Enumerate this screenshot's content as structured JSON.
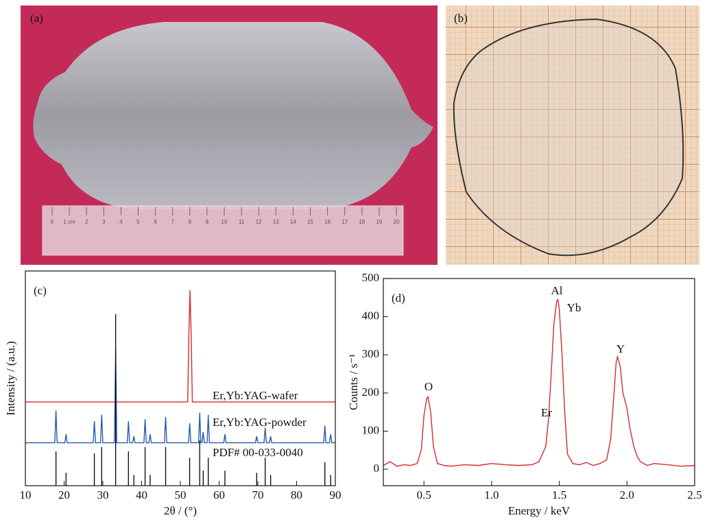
{
  "panels": {
    "a": {
      "label": "(a)",
      "ruler_labels": [
        "0",
        "1 cm",
        "2",
        "3",
        "4",
        "5",
        "6",
        "7",
        "8",
        "9",
        "10",
        "11",
        "12",
        "13",
        "14",
        "15",
        "16",
        "17",
        "18",
        "19",
        "20"
      ]
    },
    "b": {
      "label": "(b)"
    }
  },
  "chart_data": [
    {
      "type": "line",
      "label": "(c)",
      "x_label": "2θ / (°)",
      "y_label": "Intensity / (a.u.)",
      "xlim": [
        10,
        90
      ],
      "xticks": [
        10,
        20,
        30,
        40,
        50,
        60,
        70,
        80,
        90
      ],
      "ylim": [
        0,
        100
      ],
      "series": [
        {
          "name": "Er,Yb:YAG-wafer",
          "color": "#d42a2a",
          "x": [
            10,
            51.9,
            52.2,
            52.5,
            52.8,
            53.1,
            90
          ],
          "values": [
            39,
            39,
            70,
            91,
            70,
            39,
            39
          ]
        },
        {
          "name": "Er,Yb:YAG-powder",
          "color": "#2b5aa8",
          "x": [
            10,
            17.6,
            17.9,
            18.2,
            20.2,
            20.5,
            20.8,
            27.5,
            27.8,
            28.1,
            29.4,
            29.7,
            30.0,
            33.0,
            33.3,
            33.6,
            36.3,
            36.6,
            36.9,
            37.7,
            38.0,
            38.3,
            40.6,
            40.9,
            41.2,
            41.9,
            42.2,
            42.5,
            45.9,
            46.2,
            46.5,
            52.1,
            52.4,
            52.7,
            54.7,
            55.0,
            55.3,
            55.6,
            55.9,
            56.2,
            56.9,
            57.2,
            57.5,
            61.2,
            61.5,
            61.8,
            69.4,
            69.7,
            70.0,
            71.6,
            71.9,
            72.2,
            73.0,
            73.3,
            73.6,
            87.0,
            87.3,
            87.6,
            88.5,
            88.8,
            89.1,
            90
          ],
          "values": [
            20,
            20,
            35,
            20,
            20,
            24,
            20,
            20,
            30,
            20,
            20,
            33,
            20,
            20,
            63,
            20,
            20,
            30,
            20,
            20,
            23,
            20,
            20,
            31,
            20,
            20,
            24,
            20,
            20,
            32,
            20,
            20,
            29,
            20,
            20,
            34,
            20,
            20,
            25,
            20,
            20,
            33,
            20,
            20,
            24,
            20,
            20,
            23,
            20,
            20,
            27,
            20,
            20,
            23,
            20,
            20,
            28,
            20,
            20,
            24,
            20,
            20
          ]
        },
        {
          "name": "PDF# 00-033-0040",
          "color": "#000000",
          "kind": "stick",
          "x": [
            17.9,
            20.5,
            27.8,
            29.7,
            33.3,
            36.6,
            38.0,
            40.9,
            42.2,
            46.2,
            52.4,
            55.0,
            55.9,
            57.2,
            61.5,
            69.7,
            71.9,
            73.3,
            87.3,
            88.8
          ],
          "values": [
            16,
            6,
            15,
            18,
            80,
            16,
            5,
            18,
            5,
            18,
            13,
            21,
            7,
            13,
            7,
            6,
            13,
            5,
            11,
            5
          ]
        }
      ]
    },
    {
      "type": "line",
      "label": "(d)",
      "x_label": "Energy / keV",
      "y_label": "Counts / s⁻¹",
      "xlim": [
        0.2,
        2.5
      ],
      "xticks": [
        0.5,
        {
          "value": 1.0,
          "label": "1.0"
        },
        1.5,
        {
          "value": 2.0,
          "label": "2.0"
        },
        2.5
      ],
      "ylim": [
        -43,
        500
      ],
      "yticks": [
        0,
        100,
        200,
        300,
        400,
        500
      ],
      "annotations": [
        "O",
        "Al",
        "Yb",
        "Er",
        "Y"
      ],
      "series": [
        {
          "color": "#d42a2a",
          "x": [
            0.2,
            0.25,
            0.3,
            0.35,
            0.4,
            0.45,
            0.48,
            0.5,
            0.52,
            0.53,
            0.55,
            0.57,
            0.6,
            0.65,
            0.7,
            0.8,
            0.9,
            1.0,
            1.1,
            1.2,
            1.3,
            1.35,
            1.4,
            1.42,
            1.44,
            1.46,
            1.48,
            1.49,
            1.5,
            1.52,
            1.54,
            1.56,
            1.6,
            1.65,
            1.7,
            1.75,
            1.8,
            1.85,
            1.88,
            1.9,
            1.92,
            1.93,
            1.95,
            1.97,
            2.0,
            2.02,
            2.05,
            2.08,
            2.1,
            2.15,
            2.2,
            2.3,
            2.4,
            2.5
          ],
          "values": [
            10,
            20,
            8,
            12,
            10,
            15,
            50,
            140,
            185,
            190,
            150,
            60,
            15,
            10,
            8,
            12,
            10,
            15,
            12,
            10,
            12,
            20,
            60,
            130,
            250,
            380,
            440,
            445,
            420,
            300,
            150,
            40,
            15,
            12,
            18,
            10,
            15,
            25,
            80,
            180,
            280,
            295,
            270,
            200,
            160,
            110,
            60,
            30,
            20,
            10,
            15,
            12,
            8,
            10
          ]
        }
      ]
    }
  ]
}
